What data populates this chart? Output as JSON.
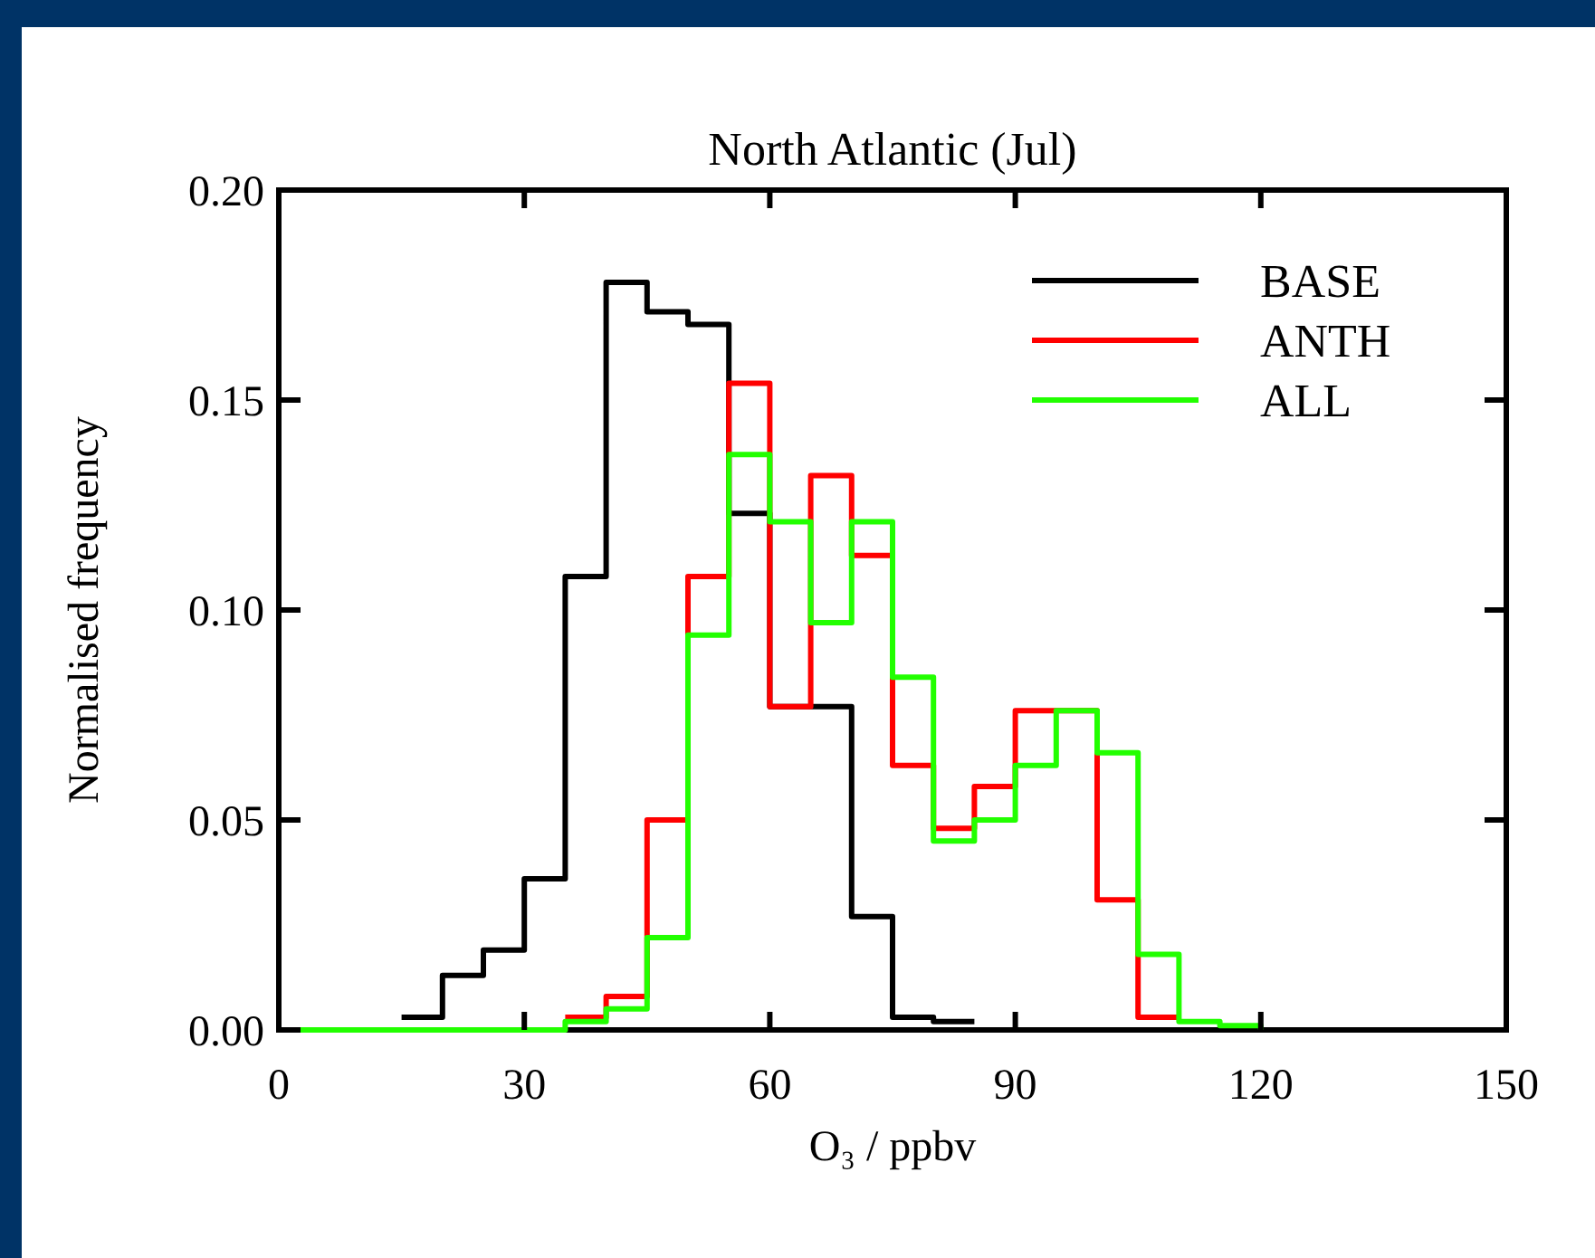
{
  "chart_data": {
    "type": "step",
    "title": "North Atlantic (Jul)",
    "xlabel": "O₃ / ppbv",
    "ylabel": "Normalised frequency",
    "x": [
      0,
      5,
      10,
      15,
      20,
      25,
      30,
      35,
      40,
      45,
      50,
      55,
      60,
      65,
      70,
      75,
      80,
      85,
      90,
      95,
      100,
      105,
      110,
      115,
      120
    ],
    "series": [
      {
        "name": "BASE",
        "color": "#000000",
        "values": [
          null,
          null,
          null,
          0.003,
          0.013,
          0.019,
          0.036,
          0.108,
          0.178,
          0.171,
          0.168,
          0.123,
          0.077,
          0.077,
          0.027,
          0.003,
          0.002,
          0.002,
          null,
          null,
          null,
          null,
          null,
          null,
          null
        ]
      },
      {
        "name": "ANTH",
        "color": "#ff0000",
        "values": [
          null,
          null,
          null,
          null,
          null,
          null,
          null,
          0.003,
          0.008,
          0.05,
          0.108,
          0.154,
          0.077,
          0.132,
          0.113,
          0.063,
          0.048,
          0.058,
          0.076,
          0.076,
          0.031,
          0.003,
          0.003,
          null,
          null
        ]
      },
      {
        "name": "ALL",
        "color": "#22ff00",
        "values": [
          0,
          0,
          0,
          0,
          0,
          0,
          0,
          0.002,
          0.005,
          0.022,
          0.094,
          0.137,
          0.121,
          0.097,
          0.121,
          0.084,
          0.045,
          0.05,
          0.063,
          0.076,
          0.066,
          0.018,
          0.002,
          0.001,
          0
        ]
      }
    ],
    "xlim": [
      0,
      150
    ],
    "xticks": [
      0,
      30,
      60,
      90,
      120,
      150
    ],
    "ylim": [
      0,
      0.2
    ],
    "yticks": [
      {
        "value": 0,
        "label": "0.00"
      },
      {
        "value": 0.05,
        "label": "0.05"
      },
      {
        "value": 0.1,
        "label": "0.10"
      },
      {
        "value": 0.15,
        "label": "0.15"
      },
      {
        "value": 0.2,
        "label": "0.20"
      }
    ],
    "grid": false,
    "legend": "top right"
  }
}
